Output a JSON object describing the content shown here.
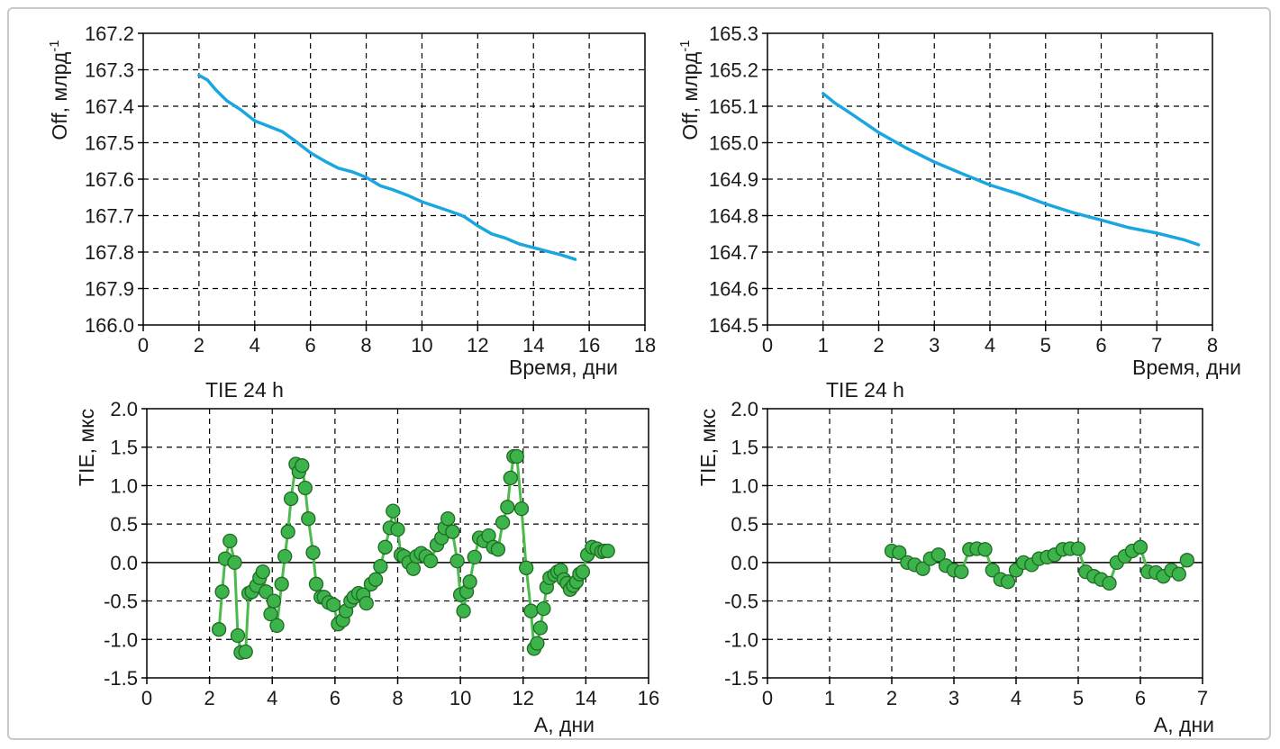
{
  "colors": {
    "line": "#1aa7e0",
    "marker_fill": "#3cb44b",
    "marker_stroke": "#1f6b22",
    "connector": "#4cba4c",
    "grid": "#000000",
    "axis": "#000000"
  },
  "chart_data": [
    {
      "id": "off-left",
      "type": "line",
      "title": "",
      "xlabel": "Время, дни",
      "ylabel_main": "Off, млрд",
      "ylabel_sup": "-1",
      "xlim": [
        0,
        18
      ],
      "x_ticks": [
        0,
        2,
        4,
        6,
        8,
        10,
        12,
        14,
        16,
        18
      ],
      "x_tick_labels": [
        "0",
        "2",
        "4",
        "6",
        "8",
        "10",
        "12",
        "14",
        "16",
        "18"
      ],
      "ylim": [
        0,
        8
      ],
      "y_tick_labels": [
        "167.2",
        "167.3",
        "167.4",
        "167.5",
        "167.6",
        "167.7",
        "167.8",
        "167.9",
        "166.0"
      ],
      "grid": true,
      "series": [
        {
          "x": [
            2.0,
            2.3,
            2.6,
            3.0,
            3.5,
            4.0,
            4.5,
            5.0,
            5.5,
            6.0,
            6.5,
            7.0,
            7.5,
            8.0,
            8.5,
            9.0,
            9.5,
            10.0,
            10.5,
            11.0,
            11.5,
            12.0,
            12.5,
            13.0,
            13.5,
            14.0,
            14.5,
            15.0,
            15.5
          ],
          "y": [
            1.15,
            1.28,
            1.55,
            1.85,
            2.1,
            2.4,
            2.55,
            2.7,
            2.98,
            3.28,
            3.5,
            3.7,
            3.8,
            3.95,
            4.18,
            4.3,
            4.45,
            4.62,
            4.75,
            4.88,
            5.02,
            5.28,
            5.5,
            5.62,
            5.78,
            5.88,
            5.98,
            6.08,
            6.2
          ]
        }
      ]
    },
    {
      "id": "off-right",
      "type": "line",
      "title": "",
      "xlabel": "Время, дни",
      "ylabel_main": "Off, млрд",
      "ylabel_sup": "-1",
      "xlim": [
        0,
        8
      ],
      "x_ticks": [
        0,
        1,
        2,
        3,
        4,
        5,
        6,
        7,
        8
      ],
      "x_tick_labels": [
        "0",
        "1",
        "2",
        "3",
        "4",
        "5",
        "6",
        "7",
        "8"
      ],
      "ylim": [
        164.5,
        165.3
      ],
      "y_tick_labels": [
        "165.3",
        "165.2",
        "165.1",
        "165.0",
        "164.9",
        "164.8",
        "164.7",
        "164.6",
        "164.5"
      ],
      "grid": true,
      "series": [
        {
          "x": [
            1.0,
            1.2,
            1.5,
            2.0,
            2.5,
            3.0,
            3.5,
            4.0,
            4.5,
            5.0,
            5.5,
            6.0,
            6.5,
            7.0,
            7.5,
            7.75
          ],
          "y": [
            165.135,
            165.11,
            165.08,
            165.028,
            164.985,
            164.947,
            164.915,
            164.884,
            164.86,
            164.832,
            164.808,
            164.788,
            164.767,
            164.752,
            164.733,
            164.72
          ]
        }
      ]
    },
    {
      "id": "tie-left",
      "type": "scatter",
      "title": "TIE 24 h",
      "xlabel": "A, дни",
      "ylabel": "TIE, мкс",
      "xlim": [
        0,
        16
      ],
      "x_ticks": [
        0,
        2,
        4,
        6,
        8,
        10,
        12,
        14,
        16
      ],
      "x_tick_labels": [
        "0",
        "2",
        "4",
        "6",
        "8",
        "10",
        "12",
        "14",
        "16"
      ],
      "ylim": [
        -1.5,
        2.0
      ],
      "y_ticks": [
        2.0,
        1.5,
        1.0,
        0.5,
        0.0,
        -0.5,
        -1.0,
        -1.5
      ],
      "y_tick_labels": [
        "2.0",
        "1.5",
        "1.0",
        "0.5",
        "0.0",
        "-0.5",
        "-1.0",
        "-1.5"
      ],
      "grid": true,
      "series": [
        {
          "x": [
            2.3,
            2.4,
            2.5,
            2.65,
            2.8,
            2.9,
            3.0,
            3.15,
            3.25,
            3.35,
            3.5,
            3.6,
            3.7,
            3.8,
            3.95,
            4.05,
            4.15,
            4.3,
            4.4,
            4.5,
            4.6,
            4.75,
            4.85,
            4.95,
            5.05,
            5.15,
            5.3,
            5.4,
            5.55,
            5.65,
            5.8,
            5.95,
            6.1,
            6.25,
            6.35,
            6.5,
            6.6,
            6.75,
            6.9,
            7.0,
            7.15,
            7.3,
            7.45,
            7.6,
            7.75,
            7.85,
            8.0,
            8.1,
            8.2,
            8.35,
            8.5,
            8.6,
            8.75,
            8.9,
            9.05,
            9.25,
            9.4,
            9.5,
            9.6,
            9.75,
            9.9,
            10.0,
            10.1,
            10.2,
            10.3,
            10.45,
            10.6,
            10.75,
            10.9,
            11.05,
            11.2,
            11.35,
            11.5,
            11.6,
            11.7,
            11.8,
            11.95,
            12.1,
            12.25,
            12.35,
            12.45,
            12.55,
            12.65,
            12.75,
            12.85,
            13.0,
            13.1,
            13.2,
            13.3,
            13.4,
            13.5,
            13.6,
            13.7,
            13.8,
            13.9,
            14.05,
            14.2,
            14.35,
            14.5,
            14.6,
            14.7
          ],
          "y": [
            -0.87,
            -0.38,
            0.05,
            0.28,
            0.0,
            -0.95,
            -1.17,
            -1.16,
            -0.4,
            -0.38,
            -0.3,
            -0.2,
            -0.12,
            -0.38,
            -0.67,
            -0.5,
            -0.82,
            -0.28,
            0.08,
            0.4,
            0.83,
            1.28,
            1.18,
            1.26,
            0.97,
            0.57,
            0.13,
            -0.28,
            -0.45,
            -0.45,
            -0.52,
            -0.55,
            -0.8,
            -0.75,
            -0.63,
            -0.5,
            -0.45,
            -0.4,
            -0.42,
            -0.53,
            -0.28,
            -0.22,
            -0.05,
            0.2,
            0.45,
            0.67,
            0.43,
            0.1,
            0.08,
            0.0,
            -0.08,
            0.08,
            0.12,
            0.08,
            0.02,
            0.23,
            0.32,
            0.45,
            0.57,
            0.4,
            0.02,
            -0.42,
            -0.63,
            -0.38,
            -0.25,
            0.07,
            0.32,
            0.28,
            0.35,
            0.2,
            0.17,
            0.52,
            0.72,
            1.1,
            1.38,
            1.38,
            0.7,
            -0.07,
            -0.63,
            -1.12,
            -1.05,
            -0.85,
            -0.6,
            -0.32,
            -0.2,
            -0.16,
            -0.12,
            -0.1,
            -0.22,
            -0.27,
            -0.35,
            -0.3,
            -0.25,
            -0.15,
            -0.12,
            0.1,
            0.2,
            0.18,
            0.14,
            0.15,
            0.15
          ]
        }
      ]
    },
    {
      "id": "tie-right",
      "type": "scatter",
      "title": "TIE 24 h",
      "xlabel": "A, дни",
      "ylabel": "TIE, мкс",
      "xlim": [
        0,
        7
      ],
      "x_ticks": [
        0,
        1,
        2,
        3,
        4,
        5,
        6,
        7
      ],
      "x_tick_labels": [
        "0",
        "1",
        "2",
        "3",
        "4",
        "5",
        "6",
        "7"
      ],
      "ylim": [
        -1.5,
        2.0
      ],
      "y_ticks": [
        2.0,
        1.5,
        1.0,
        0.5,
        0.0,
        -0.5,
        -1.0,
        -1.5
      ],
      "y_tick_labels": [
        "2.0",
        "1.5",
        "1.0",
        "0.5",
        "0.0",
        "-0.5",
        "-1.0",
        "-1.5"
      ],
      "grid": true,
      "series": [
        {
          "x": [
            2.0,
            2.12,
            2.25,
            2.37,
            2.5,
            2.62,
            2.75,
            2.87,
            3.0,
            3.12,
            3.25,
            3.37,
            3.5,
            3.62,
            3.75,
            3.87,
            4.0,
            4.12,
            4.25,
            4.37,
            4.5,
            4.62,
            4.75,
            4.87,
            5.0,
            5.12,
            5.25,
            5.37,
            5.5,
            5.62,
            5.75,
            5.87,
            6.0,
            6.12,
            6.25,
            6.37,
            6.5,
            6.62,
            6.75
          ],
          "y": [
            0.15,
            0.13,
            0.0,
            -0.03,
            -0.08,
            0.05,
            0.1,
            -0.04,
            -0.1,
            -0.12,
            0.17,
            0.18,
            0.17,
            -0.1,
            -0.22,
            -0.25,
            -0.1,
            0.0,
            -0.03,
            0.05,
            0.07,
            0.1,
            0.17,
            0.18,
            0.18,
            -0.12,
            -0.18,
            -0.22,
            -0.27,
            0.0,
            0.08,
            0.15,
            0.2,
            -0.12,
            -0.13,
            -0.18,
            -0.1,
            -0.15,
            0.03
          ]
        }
      ]
    }
  ]
}
